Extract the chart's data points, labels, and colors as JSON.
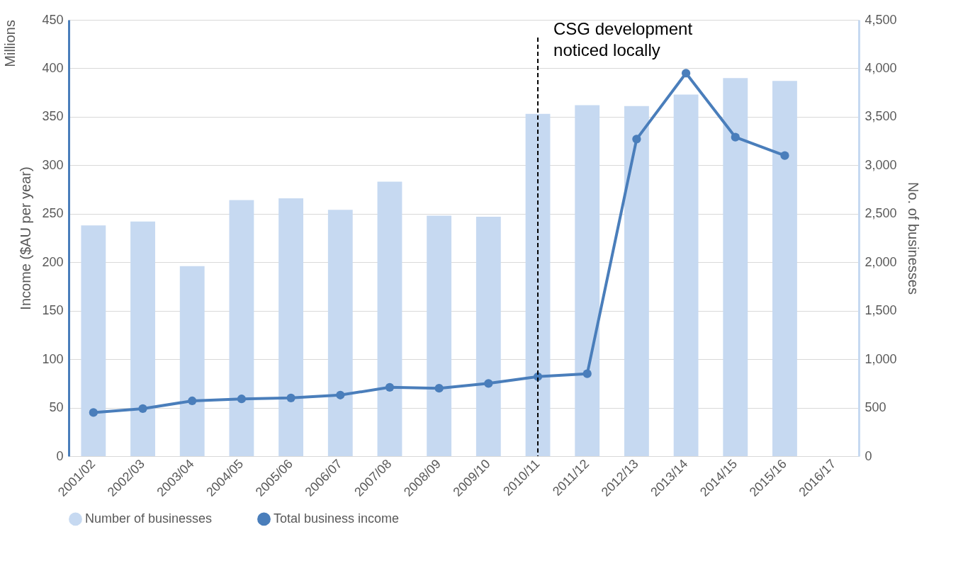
{
  "chart_data": {
    "type": "bar",
    "categories": [
      "2001/02",
      "2002/03",
      "2003/04",
      "2004/05",
      "2005/06",
      "2006/07",
      "2007/08",
      "2008/09",
      "2009/10",
      "2010/11",
      "2011/12",
      "2012/13",
      "2013/14",
      "2014/15",
      "2015/16",
      "2016/17"
    ],
    "series": [
      {
        "name": "Number of businesses",
        "axis": "y2",
        "color": "#c6d9f1",
        "values": [
          2380,
          2420,
          1960,
          2640,
          2660,
          2540,
          2830,
          2480,
          2470,
          3530,
          3620,
          3610,
          3730,
          3900,
          3870,
          null
        ]
      },
      {
        "name": "Total business income",
        "type": "line",
        "color": "#4a7ebb",
        "values": [
          45,
          49,
          57,
          59,
          60,
          63,
          71,
          70,
          75,
          82,
          85,
          327,
          395,
          329,
          310,
          null
        ]
      }
    ],
    "ylabel": "Income ($AU per year)",
    "y2label": "No. of businesses",
    "ylim": [
      0,
      450
    ],
    "yticks": [
      0,
      50,
      100,
      150,
      200,
      250,
      300,
      350,
      400,
      450
    ],
    "y2lim": [
      0,
      4500
    ],
    "y2ticks": [
      0,
      500,
      {
        "value": 1000,
        "label": "1,000"
      },
      {
        "value": 1500,
        "label": "1,500"
      },
      {
        "value": 2000,
        "label": "2,000"
      },
      {
        "value": 2500,
        "label": "2,500"
      },
      {
        "value": 3000,
        "label": "3,000"
      },
      {
        "value": 3500,
        "label": "3,500"
      },
      {
        "value": 4000,
        "label": "4,000"
      },
      {
        "value": 4500,
        "label": "4,500"
      }
    ],
    "annotations": [
      "Millions"
    ],
    "ref_lines": [
      {
        "axis": "x",
        "value": "2010/11",
        "label": "CSG development noticed locally",
        "line_style": "dashed",
        "color": "#000000"
      }
    ],
    "grid": "y",
    "legend": "bottom",
    "marker": "circle",
    "line_style": "solid"
  }
}
